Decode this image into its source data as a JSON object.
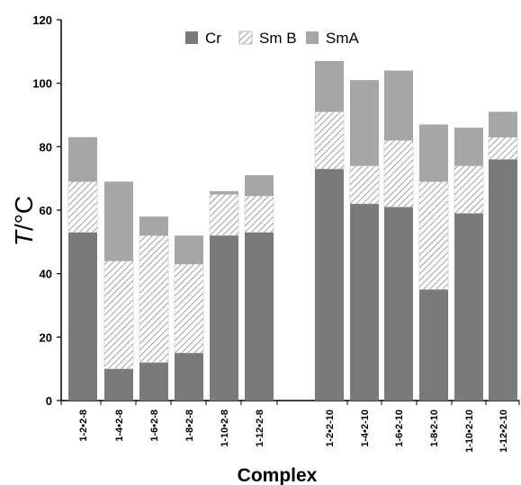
{
  "chart_data": {
    "type": "bar",
    "stacked": true,
    "xlabel": "Complex",
    "ylabel": {
      "italic": "T",
      "rest": "/°C"
    },
    "ylim": [
      0,
      120
    ],
    "yticks": [
      "0",
      "20",
      "40",
      "60",
      "80",
      "100",
      "120"
    ],
    "grid": false,
    "legend_position": "top",
    "groups": [
      [
        "1-2•2-8",
        "1-4•2-8",
        "1-6•2-8",
        "1-8•2-8",
        "1-10•2-8",
        "1-12•2-8"
      ],
      [
        "1-2•2-10",
        "1-4•2-10",
        "1-6•2-10",
        "1-8•2-10",
        "1-10•2-10",
        "1-12•2-10"
      ]
    ],
    "categories": [
      "1-2•2-8",
      "1-4•2-8",
      "1-6•2-8",
      "1-8•2-8",
      "1-10•2-8",
      "1-12•2-8",
      "1-2•2-10",
      "1-4•2-10",
      "1-6•2-10",
      "1-8•2-10",
      "1-10•2-10",
      "1-12•2-10"
    ],
    "series": [
      {
        "name": "Cr",
        "pattern": "solid",
        "color": "#7a7a7a",
        "values": [
          53,
          10,
          12,
          15,
          52,
          53,
          73,
          62,
          61,
          35,
          59,
          76
        ]
      },
      {
        "name": "Sm B",
        "pattern": "hatch",
        "color": "#9a9a9a",
        "values": [
          16,
          34,
          40,
          28,
          13,
          11.5,
          18,
          12,
          21,
          34,
          15,
          7
        ]
      },
      {
        "name": "SmA",
        "pattern": "solid",
        "color": "#a6a6a6",
        "values": [
          14,
          25,
          6,
          9,
          1,
          6.5,
          16,
          27,
          22,
          18,
          12,
          8
        ]
      }
    ]
  }
}
